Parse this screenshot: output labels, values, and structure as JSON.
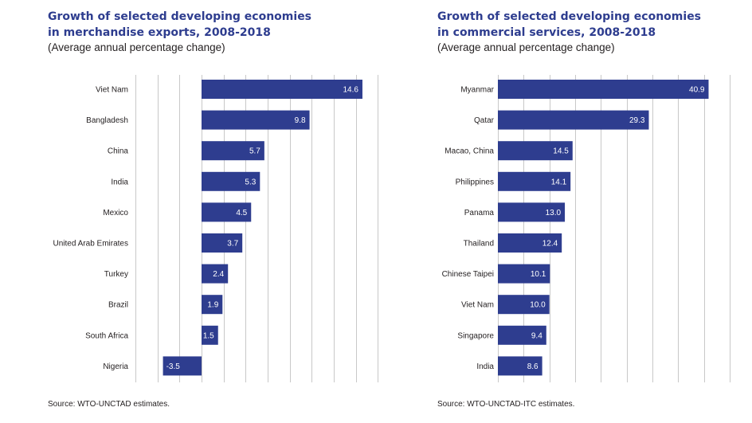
{
  "colors": {
    "bar": "#2e3d8f",
    "title": "#2e3d8f",
    "grid": "#c8c8c8",
    "text": "#231f20",
    "value_label": "#ffffff"
  },
  "chart_data": [
    {
      "type": "bar",
      "orientation": "horizontal",
      "title": "Growth of selected developing economies\nin merchandise exports, 2008-2018",
      "title_lines": [
        "Growth of selected developing economies",
        "in merchandise exports, 2008-2018"
      ],
      "subtitle": "(Average annual percentage change)",
      "source": "Source: WTO-UNCTAD estimates.",
      "categories": [
        "Viet Nam",
        "Bangladesh",
        "China",
        "India",
        "Mexico",
        "United Arab Emirates",
        "Turkey",
        "Brazil",
        "South Africa",
        "Nigeria"
      ],
      "values": [
        14.6,
        9.8,
        5.7,
        5.3,
        4.5,
        3.7,
        2.4,
        1.9,
        1.5,
        -3.5
      ],
      "value_labels": [
        "14.6",
        "9.8",
        "5.7",
        "5.3",
        "4.5",
        "3.7",
        "2.4",
        "1.9",
        "1.5",
        "-3.5"
      ],
      "xlim": [
        -6,
        18
      ],
      "grid_step": 2,
      "grid": true,
      "data_labels": "inside-end"
    },
    {
      "type": "bar",
      "orientation": "horizontal",
      "title": "Growth of selected developing economies\nin commercial services, 2008-2018",
      "title_lines": [
        "Growth of selected developing economies",
        "in commercial services, 2008-2018"
      ],
      "subtitle": "(Average annual percentage change)",
      "source": "Source: WTO-UNCTAD-ITC estimates.",
      "categories": [
        "Myanmar",
        "Qatar",
        "Macao, China",
        "Philippines",
        "Panama",
        "Thailand",
        "Chinese Taipei",
        "Viet Nam",
        "Singapore",
        "India"
      ],
      "values": [
        40.9,
        29.3,
        14.5,
        14.1,
        13.0,
        12.4,
        10.1,
        10.0,
        9.4,
        8.6
      ],
      "value_labels": [
        "40.9",
        "29.3",
        "14.5",
        "14.1",
        "13.0",
        "12.4",
        "10.1",
        "10.0",
        "9.4",
        "8.6"
      ],
      "xlim": [
        0,
        45
      ],
      "grid_step": 5,
      "grid": true,
      "data_labels": "inside-end"
    }
  ]
}
